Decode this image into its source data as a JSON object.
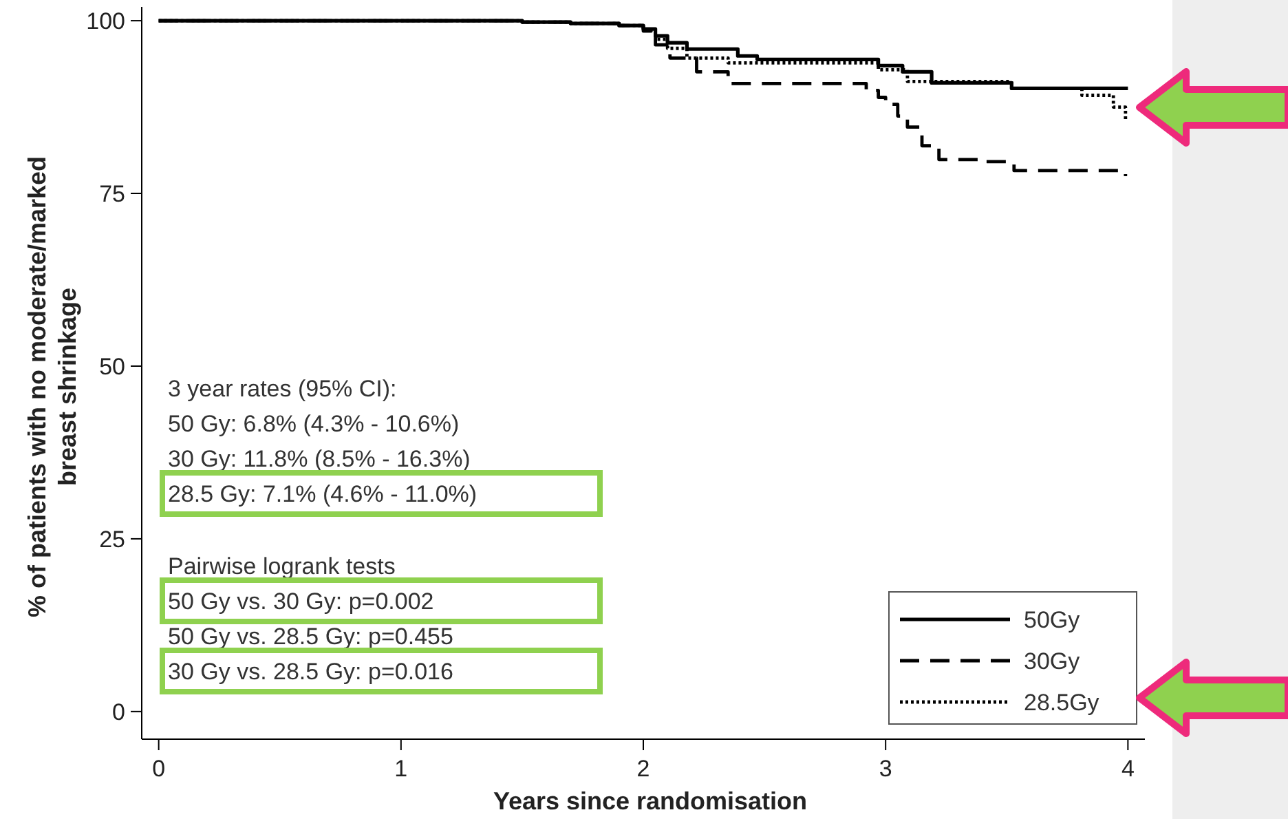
{
  "chart_data": {
    "type": "step",
    "xlabel": "Years since randomisation",
    "ylabel": "% of patients with no moderate/marked\nbreast shrinkage",
    "xlim": [
      -0.07,
      4.07
    ],
    "ylim": [
      -4,
      102
    ],
    "xticks": [
      0,
      1,
      2,
      3,
      4
    ],
    "yticks": [
      0,
      25,
      50,
      75,
      100
    ],
    "legend": "bottom right",
    "grid": false,
    "series": [
      {
        "name": "50Gy",
        "color": "#000000",
        "line_style": "solid",
        "x": [
          0,
          1.5,
          1.7,
          1.9,
          2.0,
          2.05,
          2.1,
          2.18,
          2.39,
          2.47,
          2.97,
          3.07,
          3.19,
          3.52,
          4.0
        ],
        "values": [
          100,
          99.8,
          99.6,
          99.3,
          98.8,
          97.8,
          96.8,
          95.9,
          94.9,
          94.4,
          93.5,
          92.6,
          91.0,
          90.2,
          90.2
        ]
      },
      {
        "name": "30Gy",
        "color": "#000000",
        "line_style": "dashed",
        "x": [
          0,
          1.5,
          1.7,
          1.9,
          2.0,
          2.05,
          2.11,
          2.22,
          2.35,
          2.92,
          2.97,
          3.0,
          3.05,
          3.09,
          3.15,
          3.22,
          3.39,
          3.53,
          3.99
        ],
        "values": [
          100,
          99.8,
          99.6,
          99.3,
          98.5,
          96.5,
          94.6,
          92.6,
          90.9,
          89.9,
          88.9,
          87.9,
          86.2,
          84.6,
          81.9,
          79.9,
          79.6,
          78.3,
          77.5
        ]
      },
      {
        "name": "28.5Gy",
        "color": "#000000",
        "line_style": "dotted",
        "x": [
          0,
          1.5,
          1.7,
          1.9,
          2.0,
          2.05,
          2.1,
          2.18,
          2.35,
          2.96,
          2.97,
          3.09,
          3.52,
          3.81,
          3.94,
          3.99
        ],
        "values": [
          100,
          99.8,
          99.6,
          99.3,
          98.6,
          97.3,
          96.0,
          94.6,
          93.9,
          93.9,
          92.9,
          91.2,
          90.2,
          89.2,
          87.5,
          85.7
        ]
      }
    ],
    "annotations": [
      "3 year rates (95% CI):",
      "50 Gy: 6.8% (4.3% - 10.6%)",
      "30 Gy: 11.8% (8.5% - 16.3%)",
      "28.5 Gy: 7.1% (4.6% - 11.0%)",
      "Pairwise logrank tests",
      "50 Gy vs. 30 Gy: p=0.002",
      "50 Gy vs. 28.5 Gy: p=0.455",
      "30 Gy vs. 28.5 Gy: p=0.016"
    ]
  }
}
